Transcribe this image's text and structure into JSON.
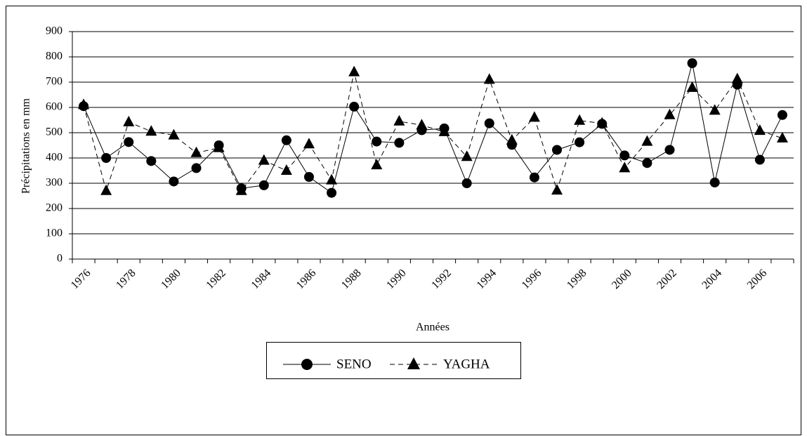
{
  "chart_data": {
    "type": "line",
    "y_label": "Précipitations en mm",
    "x_label": "Années",
    "categories": [
      "1976",
      null,
      "1978",
      null,
      "1980",
      null,
      "1982",
      null,
      "1984",
      null,
      "1986",
      null,
      "1988",
      null,
      "1990",
      null,
      "1992",
      null,
      "1994",
      null,
      "1996",
      null,
      "1998",
      null,
      "2000",
      null,
      "2002",
      null,
      "2004",
      null,
      "2006",
      null
    ],
    "series": [
      {
        "name": "SENO",
        "color": "#000000",
        "dash": false,
        "marker": "circle",
        "values": [
          605,
          400,
          463,
          388,
          307,
          360,
          450,
          280,
          292,
          470,
          325,
          262,
          603,
          465,
          460,
          510,
          517,
          300,
          537,
          452,
          323,
          432,
          462,
          535,
          410,
          380,
          432,
          775,
          303,
          690,
          393,
          570
        ]
      },
      {
        "name": "YAGHA",
        "color": "#000000",
        "dash": true,
        "marker": "triangle",
        "values": [
          610,
          270,
          542,
          505,
          490,
          420,
          440,
          270,
          390,
          350,
          455,
          312,
          740,
          372,
          545,
          530,
          503,
          405,
          710,
          470,
          560,
          272,
          548,
          537,
          360,
          465,
          570,
          678,
          588,
          712,
          508,
          478
        ]
      }
    ],
    "ylim": [
      0,
      900
    ],
    "yticks": [
      0,
      100,
      200,
      300,
      400,
      500,
      600,
      700,
      800,
      900
    ],
    "grid": true
  }
}
